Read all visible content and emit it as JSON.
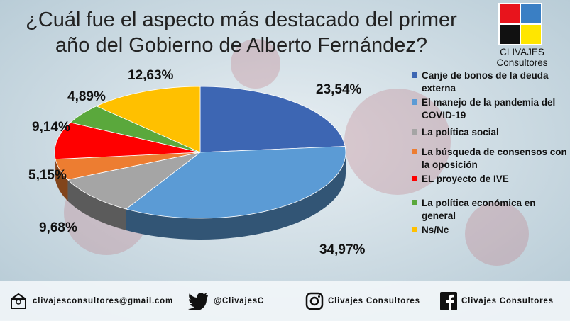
{
  "title": {
    "line1": "¿Cuál fue el aspecto más destacado del primer",
    "line2": "año del Gobierno de Alberto Fernández?"
  },
  "brand": {
    "name": "CLIVAJES Consultores",
    "logo_colors": [
      "#e8141c",
      "#3a7fc4",
      "#111111",
      "#ffe600"
    ]
  },
  "chart_data": {
    "type": "pie",
    "labels": [
      "Canje de bonos de la deuda externa",
      "El manejo de la pandemia del COVID-19",
      "La política social",
      "La búsqueda de consensos con la oposición",
      "EL proyecto de IVE",
      "La política económica en general",
      "Ns/Nc"
    ],
    "values": [
      23.54,
      34.97,
      9.68,
      5.15,
      9.14,
      4.89,
      12.63
    ],
    "data_labels": [
      "23,54%",
      "34,97%",
      "9,68%",
      "5,15%",
      "9,14%",
      "4,89%",
      "12,63%"
    ],
    "colors": [
      "#3d66b3",
      "#5b9bd5",
      "#a5a5a5",
      "#ed7d31",
      "#ff0000",
      "#5aa83c",
      "#ffc000"
    ],
    "legend_position": "right"
  },
  "footer": {
    "email": "clivajesconsultores@gmail.com",
    "twitter": "@ClivajesC",
    "instagram": "Clivajes Consultores",
    "facebook": "Clivajes Consultores"
  }
}
